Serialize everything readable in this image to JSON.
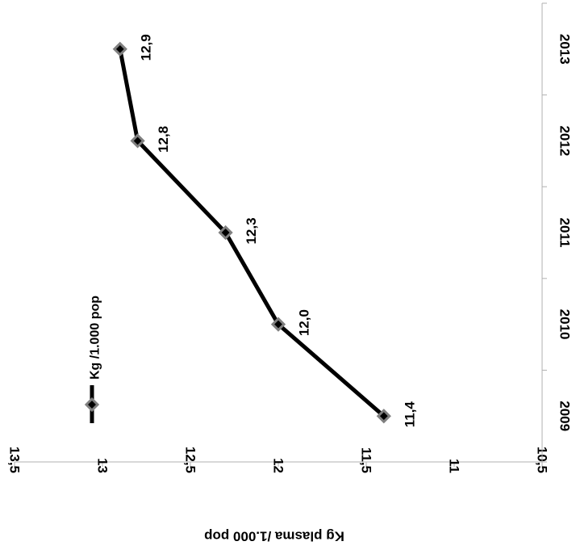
{
  "chart_data": {
    "type": "line",
    "title": "",
    "x": [
      "2009",
      "2010",
      "2011",
      "2012",
      "2013"
    ],
    "series": [
      {
        "name": "Kg /1.000 pop",
        "values": [
          11.4,
          12.0,
          12.3,
          12.8,
          12.9
        ]
      }
    ],
    "data_labels": [
      "11,4",
      "12,0",
      "12,3",
      "12,8",
      "12,9"
    ],
    "xlabel": "",
    "ylabel": "Kg plasma /1.000 pop",
    "ylim": [
      10.5,
      13.5
    ],
    "y_ticks": [
      10.5,
      11,
      11.5,
      12,
      12.5,
      13,
      13.5
    ],
    "y_tick_labels": [
      "10,5",
      "11",
      "11,5",
      "12",
      "12,5",
      "13",
      "13,5"
    ],
    "grid": false,
    "legend_position": "top-left",
    "rotation": "90-clockwise",
    "colors": {
      "line": "#000000",
      "marker_fill": "#000000",
      "marker_stroke": "#808080",
      "axis": "#b0b0b0"
    }
  }
}
